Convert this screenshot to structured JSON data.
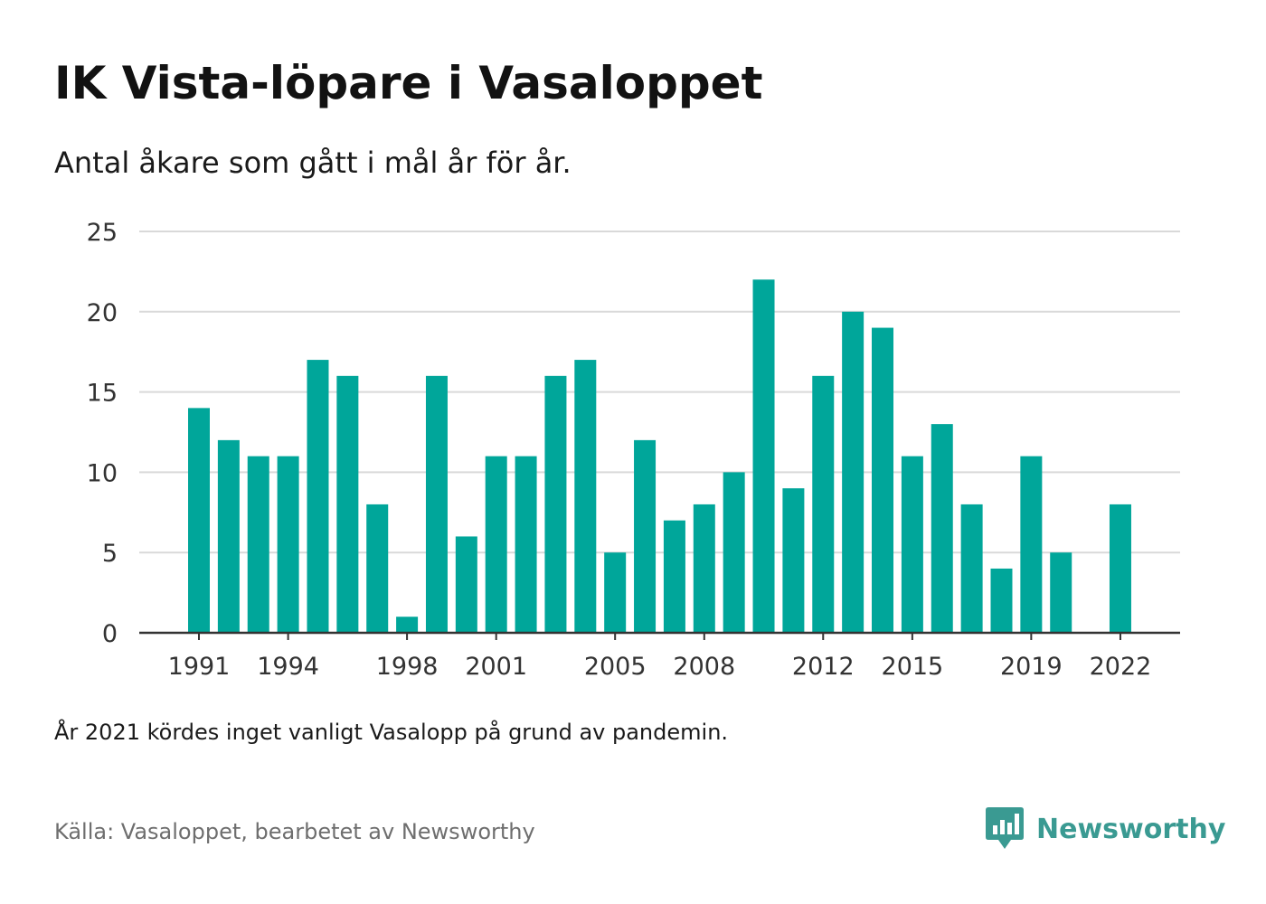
{
  "header": {
    "title": "IK Vista-löpare i Vasaloppet",
    "subtitle": "Antal åkare som gått i mål år för år."
  },
  "footer": {
    "note": "År 2021 kördes inget vanligt Vasalopp på grund av pandemin.",
    "source": "Källa: Vasaloppet, bearbetet av Newsworthy",
    "brand_name": "Newsworthy",
    "brand_icon": "bar-chart-speech-bubble-icon"
  },
  "colors": {
    "bar": "#00a69a",
    "brand": "#3a9a92",
    "grid": "#d9d9d9",
    "axis": "#333333"
  },
  "chart_data": {
    "type": "bar",
    "x": [
      1991,
      1992,
      1993,
      1994,
      1995,
      1996,
      1997,
      1998,
      1999,
      2000,
      2001,
      2002,
      2003,
      2004,
      2005,
      2006,
      2007,
      2008,
      2009,
      2010,
      2011,
      2012,
      2013,
      2014,
      2015,
      2016,
      2017,
      2018,
      2019,
      2020,
      2021,
      2022
    ],
    "values": [
      14,
      12,
      11,
      11,
      17,
      16,
      8,
      1,
      16,
      6,
      11,
      11,
      16,
      17,
      5,
      12,
      7,
      8,
      10,
      22,
      9,
      16,
      20,
      19,
      11,
      13,
      8,
      4,
      11,
      5,
      null,
      8
    ],
    "x_tick_labels": [
      "1991",
      "1994",
      "1998",
      "2001",
      "2005",
      "2008",
      "2012",
      "2015",
      "2019",
      "2022"
    ],
    "y_ticks": [
      0,
      5,
      10,
      15,
      20,
      25
    ],
    "ylim": [
      0,
      25
    ],
    "xlabel": "",
    "ylabel": "",
    "grid": true,
    "legend": "none"
  }
}
